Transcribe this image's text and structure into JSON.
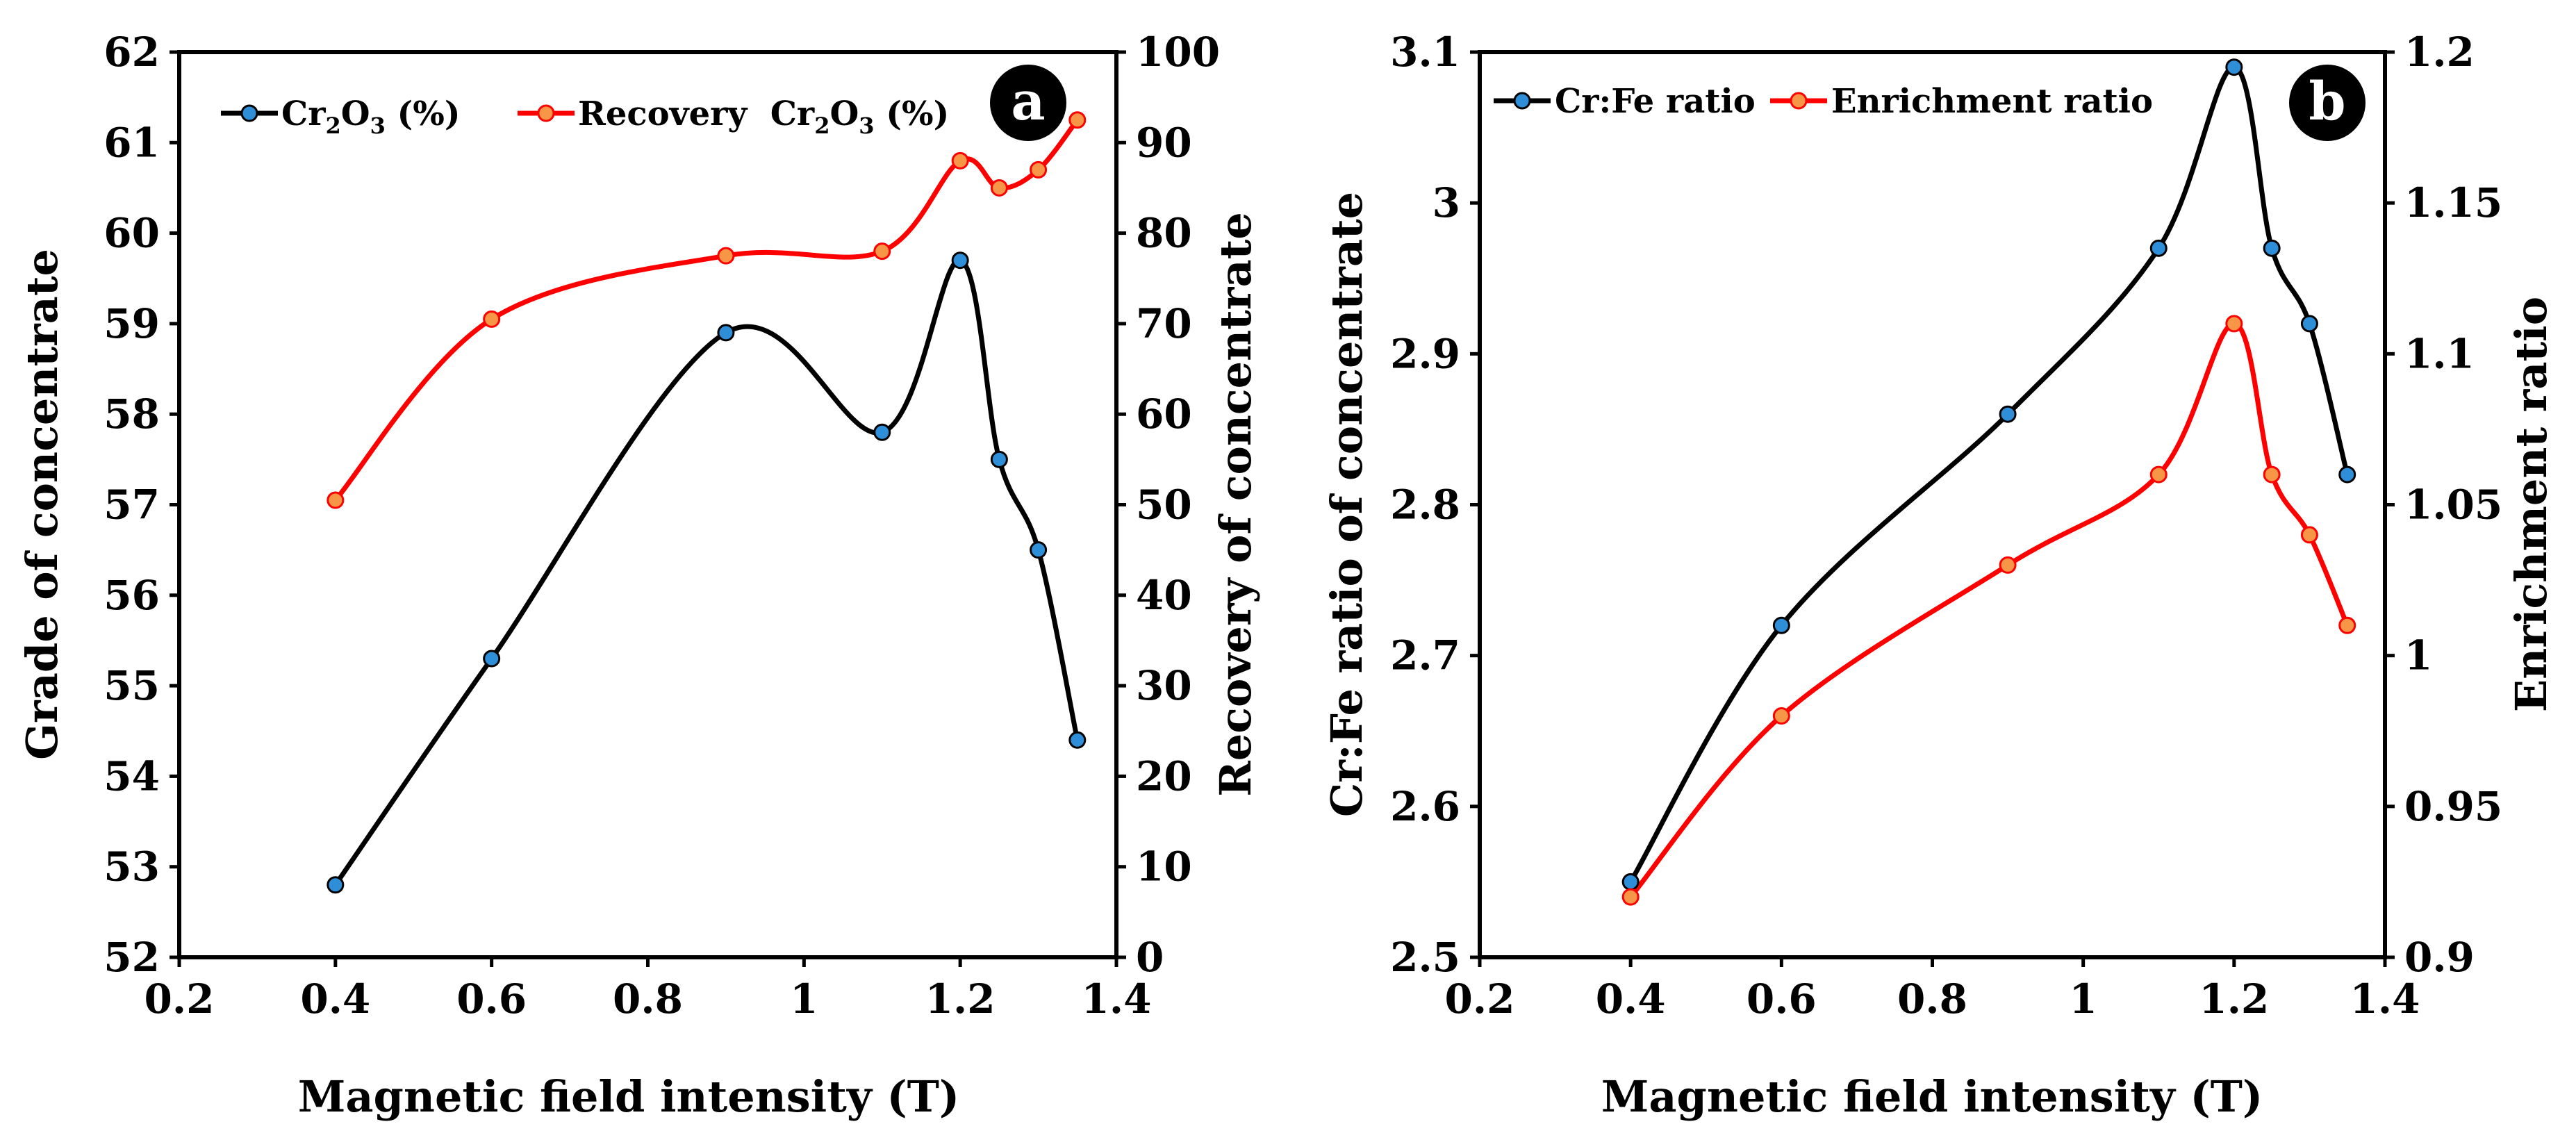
{
  "chart_data": [
    {
      "panel_label": "a",
      "type": "line",
      "xlabel": "Magnetic field intensity (T)",
      "ylabel": "Grade of concentrate",
      "y2label": "Recovery of concentrate",
      "xlim": [
        0.2,
        1.4
      ],
      "ylim": [
        52,
        62
      ],
      "y2lim": [
        0,
        100
      ],
      "x_ticks": [
        "0.2",
        "0.4",
        "0.6",
        "0.8",
        "1",
        "1.2",
        "1.4"
      ],
      "y_ticks": [
        "52",
        "53",
        "54",
        "55",
        "56",
        "57",
        "58",
        "59",
        "60",
        "61",
        "62"
      ],
      "y2_ticks": [
        "0",
        "10",
        "20",
        "30",
        "40",
        "50",
        "60",
        "70",
        "80",
        "90",
        "100"
      ],
      "x": [
        0.4,
        0.6,
        0.9,
        1.1,
        1.2,
        1.25,
        1.3,
        1.35
      ],
      "series": [
        {
          "name": "Cr2O3 (%)",
          "legend_main": "Cr",
          "legend_sub1": "2",
          "legend_mid": "O",
          "legend_sub2": "3",
          "legend_tail": " (%)",
          "axis": "left",
          "color": "#000000",
          "marker_color": "#2e8fd8",
          "values": [
            52.8,
            55.3,
            58.9,
            57.8,
            59.7,
            57.5,
            56.5,
            54.4
          ]
        },
        {
          "name": "Recovery Cr2O3 (%)",
          "legend_main": "Recovery  Cr",
          "legend_sub1": "2",
          "legend_mid": "O",
          "legend_sub2": "3",
          "legend_tail": " (%)",
          "axis": "right",
          "color": "#ff0000",
          "marker_color": "#f79646",
          "values": [
            50.5,
            70.5,
            77.5,
            78,
            88,
            85,
            87,
            92.5
          ]
        }
      ]
    },
    {
      "panel_label": "b",
      "type": "line",
      "xlabel": "Magnetic field intensity (T)",
      "ylabel": "Cr:Fe ratio of concentrate",
      "y2label": "Enrichment ratio",
      "xlim": [
        0.2,
        1.4
      ],
      "ylim": [
        2.5,
        3.1
      ],
      "y2lim": [
        0.9,
        1.2
      ],
      "x_ticks": [
        "0.2",
        "0.4",
        "0.6",
        "0.8",
        "1",
        "1.2",
        "1.4"
      ],
      "y_ticks": [
        "2.5",
        "2.6",
        "2.7",
        "2.8",
        "2.9",
        "3",
        "3.1"
      ],
      "y2_ticks": [
        "0.9",
        "0.95",
        "1",
        "1.05",
        "1.1",
        "1.15",
        "1.2"
      ],
      "x": [
        0.4,
        0.6,
        0.9,
        1.1,
        1.2,
        1.25,
        1.3,
        1.35
      ],
      "series": [
        {
          "name": "Cr:Fe ratio",
          "legend_main": "Cr:Fe ratio",
          "axis": "left",
          "color": "#000000",
          "marker_color": "#2e8fd8",
          "values": [
            2.55,
            2.72,
            2.86,
            2.97,
            3.09,
            2.97,
            2.92,
            2.82
          ]
        },
        {
          "name": "Enrichment ratio",
          "legend_main": "Enrichment ratio",
          "axis": "right",
          "color": "#ff0000",
          "marker_color": "#f79646",
          "values": [
            0.92,
            0.98,
            1.03,
            1.06,
            1.11,
            1.06,
            1.04,
            1.01
          ]
        }
      ]
    }
  ]
}
